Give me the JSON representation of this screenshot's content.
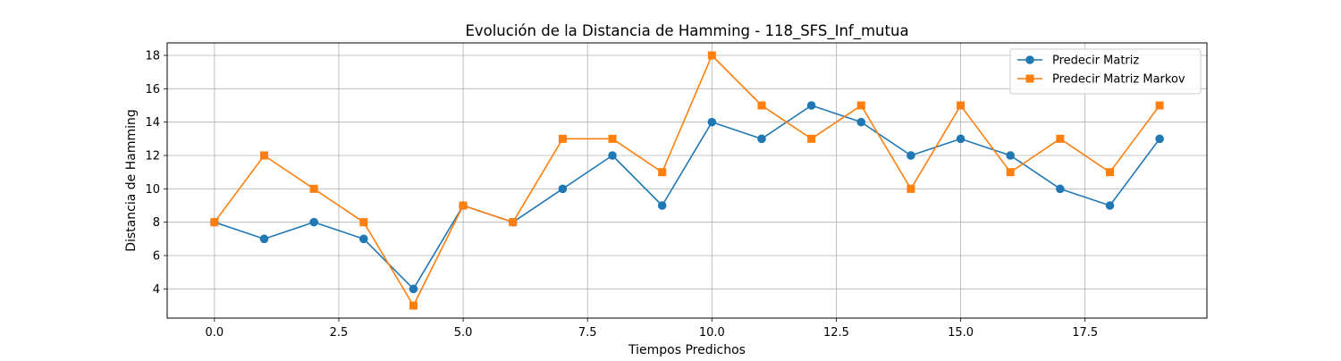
{
  "chart_data": {
    "type": "line",
    "title": "Evolución de la Distancia de Hamming - 118_SFS_Inf_mutua",
    "xlabel": "Tiempos Predichos",
    "ylabel": "Distancia de Hamming",
    "x": [
      0,
      1,
      2,
      3,
      4,
      5,
      6,
      7,
      8,
      9,
      10,
      11,
      12,
      13,
      14,
      15,
      16,
      17,
      18,
      19
    ],
    "series": [
      {
        "name": "Predecir Matriz",
        "color": "#1f77b4",
        "marker": "circle",
        "values": [
          8,
          7,
          8,
          7,
          4,
          9,
          8,
          10,
          12,
          9,
          14,
          13,
          15,
          14,
          12,
          13,
          12,
          10,
          9,
          13
        ]
      },
      {
        "name": "Predecir Matriz Markov",
        "color": "#ff7f0e",
        "marker": "square",
        "values": [
          8,
          12,
          10,
          8,
          3,
          9,
          8,
          13,
          13,
          11,
          18,
          15,
          13,
          15,
          10,
          15,
          11,
          13,
          11,
          15
        ]
      }
    ],
    "xlim": [
      -0.95,
      19.95
    ],
    "ylim": [
      2.25,
      18.75
    ],
    "xticks": [
      0.0,
      2.5,
      5.0,
      7.5,
      10.0,
      12.5,
      15.0,
      17.5
    ],
    "xtick_labels": [
      "0.0",
      "2.5",
      "5.0",
      "7.5",
      "10.0",
      "12.5",
      "15.0",
      "17.5"
    ],
    "yticks": [
      4,
      6,
      8,
      10,
      12,
      14,
      16,
      18
    ],
    "ytick_labels": [
      "4",
      "6",
      "8",
      "10",
      "12",
      "14",
      "16",
      "18"
    ],
    "grid": true,
    "legend_position": "top-right"
  }
}
